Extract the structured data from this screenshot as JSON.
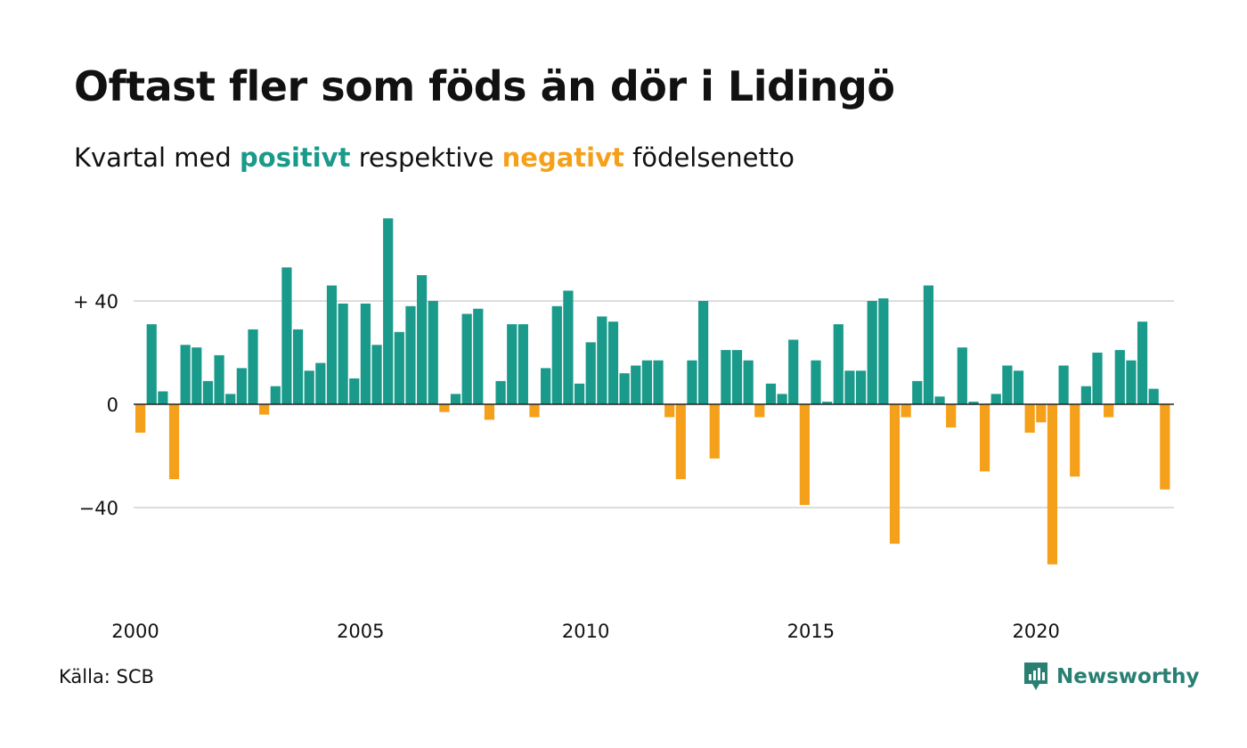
{
  "title": "Oftast fler som föds än dör i Lidingö",
  "subtitle": {
    "prefix": "Kvartal med",
    "positive_word": "positivt",
    "middle": "respektive",
    "negative_word": "negativt",
    "suffix": "födelsenetto"
  },
  "source": "Källa: SCB",
  "brand": {
    "name": "Newsworthy",
    "icon": "newsworthy-logo-icon"
  },
  "colors": {
    "positive": "#1a9a8a",
    "negative": "#f5a01a",
    "grid": "#dddddd",
    "text": "#111111",
    "brand": "#2a7f73"
  },
  "chart_data": {
    "type": "bar",
    "ylim": [
      -70,
      75
    ],
    "yticks": [
      {
        "value": 40,
        "label": "+ 40"
      },
      {
        "value": 0,
        "label": "0"
      },
      {
        "value": -40,
        "label": "−40"
      }
    ],
    "xticks": [
      {
        "year": 2000,
        "label": "2000"
      },
      {
        "year": 2005,
        "label": "2005"
      },
      {
        "year": 2010,
        "label": "2010"
      },
      {
        "year": 2015,
        "label": "2015"
      },
      {
        "year": 2020,
        "label": "2020"
      }
    ],
    "start_year": 2000,
    "start_quarter": 1,
    "values": [
      -11,
      31,
      5,
      -29,
      23,
      22,
      9,
      19,
      4,
      14,
      29,
      -4,
      7,
      53,
      29,
      13,
      16,
      46,
      39,
      10,
      39,
      23,
      72,
      28,
      38,
      50,
      40,
      -3,
      4,
      35,
      37,
      -6,
      9,
      31,
      31,
      -5,
      14,
      38,
      44,
      8,
      24,
      34,
      32,
      12,
      15,
      17,
      17,
      -5,
      -29,
      17,
      40,
      -21,
      21,
      21,
      17,
      -5,
      8,
      4,
      25,
      -39,
      17,
      1,
      31,
      13,
      13,
      40,
      41,
      -54,
      -5,
      9,
      46,
      3,
      -9,
      22,
      1,
      -26,
      4,
      15,
      13,
      -11,
      -7,
      -62,
      15,
      -28,
      7,
      20,
      -5,
      21,
      17,
      32,
      6,
      -33
    ]
  }
}
